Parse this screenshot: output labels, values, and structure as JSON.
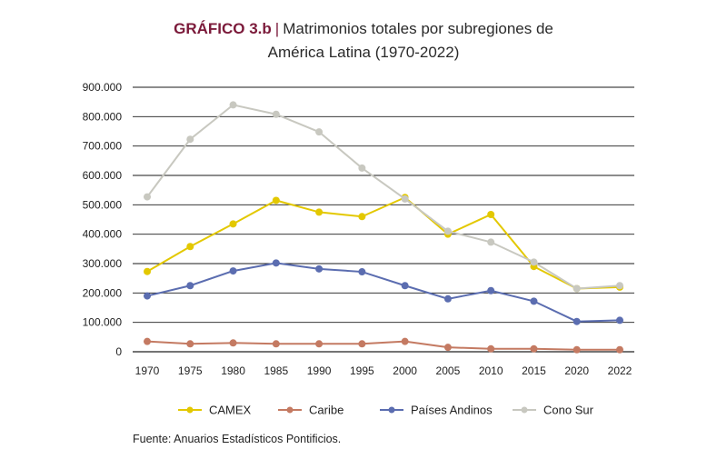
{
  "title": {
    "code": "GRÁFICO 3.b",
    "separator": "|",
    "line1": "Matrimonios totales por subregiones de",
    "line2": "América Latina (1970-2022)"
  },
  "source": "Fuente: Anuarios Estadísticos Pontificios.",
  "chart_data": {
    "type": "line",
    "title": "Matrimonios totales por subregiones de América Latina (1970-2022)",
    "xlabel": "",
    "ylabel": "",
    "categories": [
      "1970",
      "1975",
      "1980",
      "1985",
      "1990",
      "1995",
      "2000",
      "2005",
      "2010",
      "2015",
      "2020",
      "2022"
    ],
    "ylim": [
      0,
      900000
    ],
    "yticks": [
      0,
      100000,
      200000,
      300000,
      400000,
      500000,
      600000,
      700000,
      800000,
      900000
    ],
    "ytick_labels": [
      "0",
      "100.000",
      "200.000",
      "300.000",
      "400.000",
      "500.000",
      "600.000",
      "700.000",
      "800.000",
      "900.000"
    ],
    "grid": "horizontal",
    "legend_position": "bottom",
    "series": [
      {
        "name": "CAMEX",
        "color": "#e3c800",
        "values": [
          273000,
          358000,
          435000,
          515000,
          475000,
          460000,
          525000,
          400000,
          467000,
          290000,
          215000,
          220000
        ]
      },
      {
        "name": "Caribe",
        "color": "#c47a62",
        "values": [
          35000,
          27000,
          30000,
          27000,
          27000,
          27000,
          35000,
          15000,
          10000,
          10000,
          7000,
          7000
        ]
      },
      {
        "name": "Países Andinos",
        "color": "#5b6db0",
        "values": [
          190000,
          225000,
          275000,
          302000,
          282000,
          272000,
          225000,
          180000,
          208000,
          172000,
          103000,
          107000
        ]
      },
      {
        "name": "Cono Sur",
        "color": "#c8c8c0",
        "values": [
          527000,
          723000,
          840000,
          808000,
          748000,
          625000,
          520000,
          410000,
          373000,
          305000,
          215000,
          225000
        ]
      }
    ]
  }
}
